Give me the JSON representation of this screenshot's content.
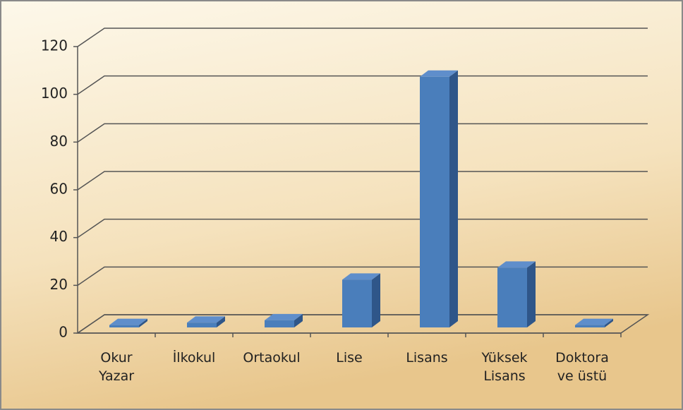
{
  "chart_data": {
    "type": "bar3d",
    "categories": [
      "Okur\nYazar",
      "İlkokul",
      "Ortaokul",
      "Lise",
      "Lisans",
      "Yüksek\nLisans",
      "Doktora\nve üstü"
    ],
    "values": [
      1,
      2,
      3,
      20,
      105,
      25,
      1
    ],
    "color": "#4a7ebb",
    "ylim": [
      0,
      120
    ],
    "yticks": [
      0,
      20,
      40,
      60,
      80,
      100,
      120
    ],
    "grid": true
  }
}
